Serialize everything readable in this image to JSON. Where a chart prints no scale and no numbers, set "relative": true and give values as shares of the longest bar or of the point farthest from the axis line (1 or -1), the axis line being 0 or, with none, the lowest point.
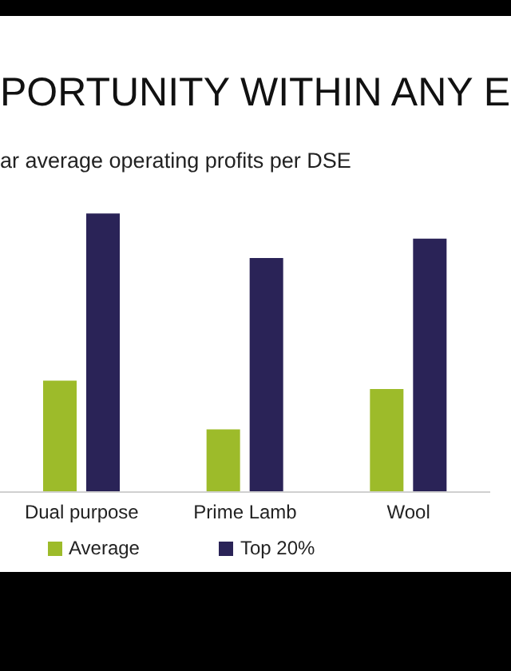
{
  "chart_data": {
    "type": "bar",
    "title": "PORTUNITY WITHIN ANY E",
    "subtitle": "ar average operating profits per DSE",
    "categories": [
      "Dual purpose",
      "Prime Lamb",
      "Wool"
    ],
    "series": [
      {
        "name": "Average",
        "color": "#9dbb2a",
        "values": [
          0.4,
          0.225,
          0.37
        ]
      },
      {
        "name": "Top 20%",
        "color": "#2a2357",
        "values": [
          1,
          0.84,
          0.91
        ]
      }
    ],
    "relative": true,
    "legend": "bottom left"
  }
}
